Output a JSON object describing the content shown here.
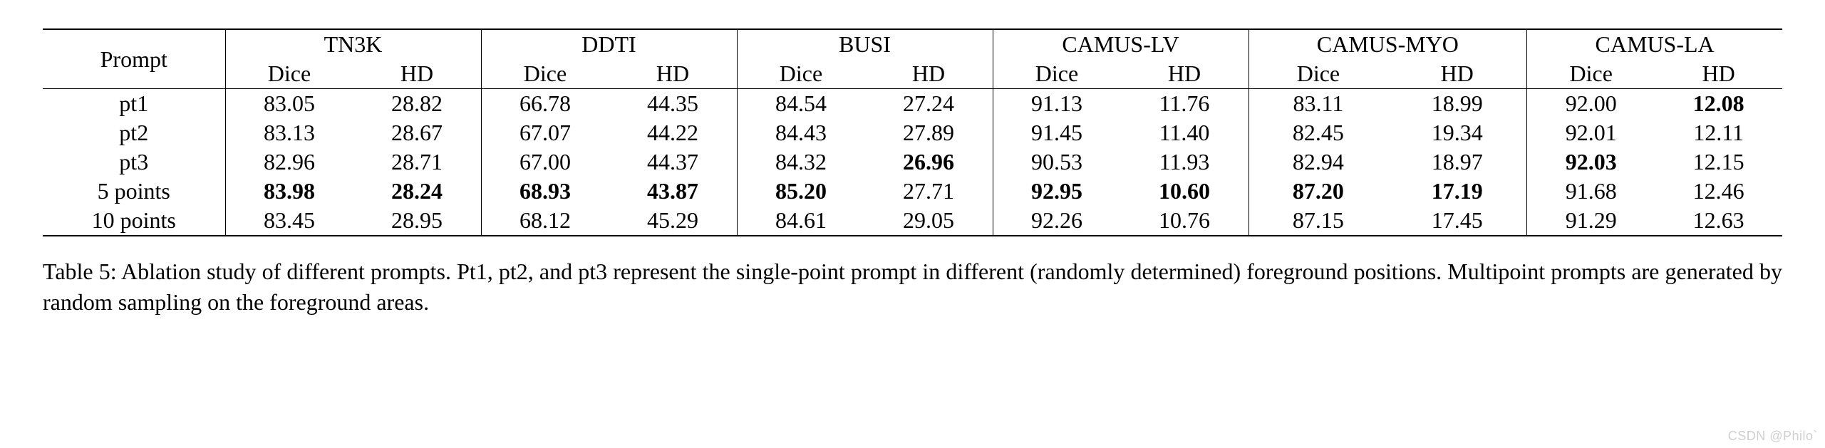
{
  "table": {
    "prompt_header": "Prompt",
    "datasets": [
      "TN3K",
      "DDTI",
      "BUSI",
      "CAMUS-LV",
      "CAMUS-MYO",
      "CAMUS-LA"
    ],
    "metrics": [
      "Dice",
      "HD"
    ],
    "rows": [
      {
        "label": "pt1",
        "values": [
          {
            "v": "83.05",
            "bold": false
          },
          {
            "v": "28.82",
            "bold": false
          },
          {
            "v": "66.78",
            "bold": false
          },
          {
            "v": "44.35",
            "bold": false
          },
          {
            "v": "84.54",
            "bold": false
          },
          {
            "v": "27.24",
            "bold": false
          },
          {
            "v": "91.13",
            "bold": false
          },
          {
            "v": "11.76",
            "bold": false
          },
          {
            "v": "83.11",
            "bold": false
          },
          {
            "v": "18.99",
            "bold": false
          },
          {
            "v": "92.00",
            "bold": false
          },
          {
            "v": "12.08",
            "bold": true
          }
        ]
      },
      {
        "label": "pt2",
        "values": [
          {
            "v": "83.13",
            "bold": false
          },
          {
            "v": "28.67",
            "bold": false
          },
          {
            "v": "67.07",
            "bold": false
          },
          {
            "v": "44.22",
            "bold": false
          },
          {
            "v": "84.43",
            "bold": false
          },
          {
            "v": "27.89",
            "bold": false
          },
          {
            "v": "91.45",
            "bold": false
          },
          {
            "v": "11.40",
            "bold": false
          },
          {
            "v": "82.45",
            "bold": false
          },
          {
            "v": "19.34",
            "bold": false
          },
          {
            "v": "92.01",
            "bold": false
          },
          {
            "v": "12.11",
            "bold": false
          }
        ]
      },
      {
        "label": "pt3",
        "values": [
          {
            "v": "82.96",
            "bold": false
          },
          {
            "v": "28.71",
            "bold": false
          },
          {
            "v": "67.00",
            "bold": false
          },
          {
            "v": "44.37",
            "bold": false
          },
          {
            "v": "84.32",
            "bold": false
          },
          {
            "v": "26.96",
            "bold": true
          },
          {
            "v": "90.53",
            "bold": false
          },
          {
            "v": "11.93",
            "bold": false
          },
          {
            "v": "82.94",
            "bold": false
          },
          {
            "v": "18.97",
            "bold": false
          },
          {
            "v": "92.03",
            "bold": true
          },
          {
            "v": "12.15",
            "bold": false
          }
        ]
      },
      {
        "label": "5 points",
        "values": [
          {
            "v": "83.98",
            "bold": true
          },
          {
            "v": "28.24",
            "bold": true
          },
          {
            "v": "68.93",
            "bold": true
          },
          {
            "v": "43.87",
            "bold": true
          },
          {
            "v": "85.20",
            "bold": true
          },
          {
            "v": "27.71",
            "bold": false
          },
          {
            "v": "92.95",
            "bold": true
          },
          {
            "v": "10.60",
            "bold": true
          },
          {
            "v": "87.20",
            "bold": true
          },
          {
            "v": "17.19",
            "bold": true
          },
          {
            "v": "91.68",
            "bold": false
          },
          {
            "v": "12.46",
            "bold": false
          }
        ]
      },
      {
        "label": "10 points",
        "values": [
          {
            "v": "83.45",
            "bold": false
          },
          {
            "v": "28.95",
            "bold": false
          },
          {
            "v": "68.12",
            "bold": false
          },
          {
            "v": "45.29",
            "bold": false
          },
          {
            "v": "84.61",
            "bold": false
          },
          {
            "v": "29.05",
            "bold": false
          },
          {
            "v": "92.26",
            "bold": false
          },
          {
            "v": "10.76",
            "bold": false
          },
          {
            "v": "87.15",
            "bold": false
          },
          {
            "v": "17.45",
            "bold": false
          },
          {
            "v": "91.29",
            "bold": false
          },
          {
            "v": "12.63",
            "bold": false
          }
        ]
      }
    ]
  },
  "caption": "Table 5: Ablation study of different prompts. Pt1, pt2, and pt3 represent the single-point prompt in different (randomly determined) foreground positions. Multipoint prompts are generated by random sampling on the foreground areas.",
  "watermark": "CSDN @Philo`"
}
